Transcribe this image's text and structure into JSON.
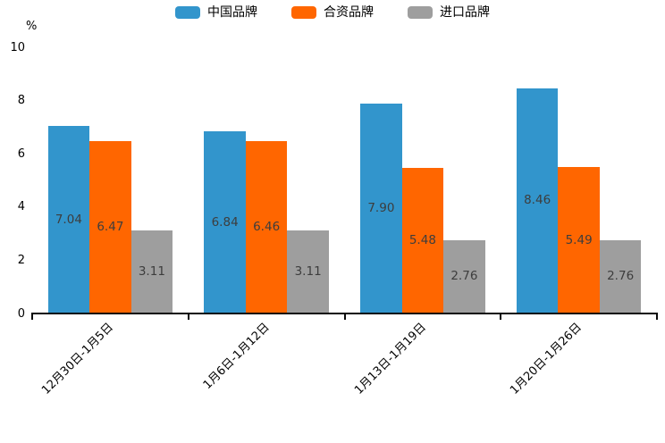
{
  "chart_data": {
    "type": "bar",
    "title": "",
    "unit_label": "%",
    "categories": [
      "12月30日-1月5日",
      "1月6日-1月12日",
      "1月13日-1月19日",
      "1月20日-1月26日"
    ],
    "series": [
      {
        "name": "中国品牌",
        "color": "#3295CC",
        "values": [
          7.04,
          6.84,
          7.9,
          8.46
        ]
      },
      {
        "name": "合资品牌",
        "color": "#FF6600",
        "values": [
          6.47,
          6.46,
          5.48,
          5.49
        ]
      },
      {
        "name": "进口品牌",
        "color": "#9E9E9E",
        "values": [
          3.11,
          3.11,
          2.76,
          2.76
        ]
      }
    ],
    "ylim": [
      0,
      10
    ],
    "yticks": [
      0,
      2,
      4,
      6,
      8,
      10
    ],
    "grid": false,
    "legend_position": "top",
    "value_label_decimals": 2,
    "colors": {
      "axis": "#0A0A0A",
      "value_label": "#3D3D3D",
      "tick_label": "#000000"
    }
  }
}
